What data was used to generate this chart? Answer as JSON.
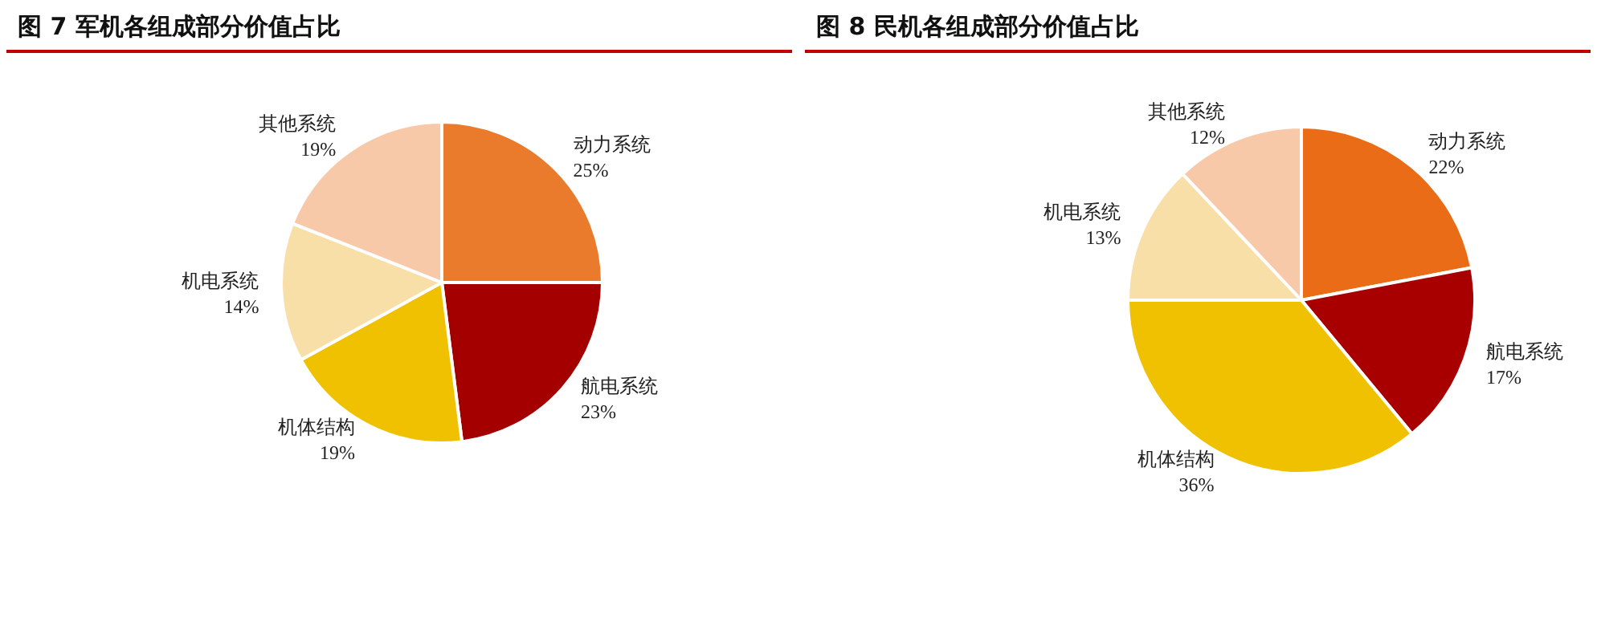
{
  "chart_data": [
    {
      "type": "pie",
      "title": "图 7 军机各组成部分价值占比",
      "categories": [
        "动力系统",
        "航电系统",
        "机体结构",
        "机电系统",
        "其他系统"
      ],
      "values": [
        25,
        23,
        19,
        14,
        19
      ],
      "value_labels": [
        "25%",
        "23%",
        "19%",
        "14%",
        "19%"
      ],
      "colors": [
        "#ea7a2c",
        "#a50000",
        "#efc100",
        "#f8dfa8",
        "#f8c9a9"
      ]
    },
    {
      "type": "pie",
      "title": "图 8 民机各组成部分价值占比",
      "categories": [
        "动力系统",
        "航电系统",
        "机体结构",
        "机电系统",
        "其他系统"
      ],
      "values": [
        22,
        17,
        36,
        13,
        12
      ],
      "value_labels": [
        "22%",
        "17%",
        "36%",
        "13%",
        "12%"
      ],
      "colors": [
        "#ea6c17",
        "#a80000",
        "#efc100",
        "#f8dfa8",
        "#f8c9a9"
      ]
    }
  ]
}
